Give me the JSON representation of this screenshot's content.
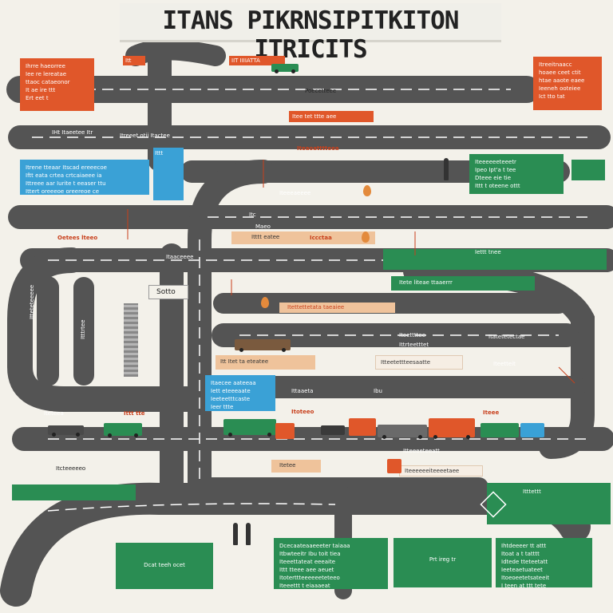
{
  "title": "ITANS PIKRNSIPITKITON ITRICITS",
  "boxes": {
    "orange_top_left": "Ihrre haeorree\nIee re lereatae\nttaoc cataeonor\nIt ae ire ttt\nErt eet t",
    "orange_top_right": "Itreeitnaacc\nhoaee ceet ctit\nhtae aaote eaee\nIeeneh ooteiee\nIct tto tat",
    "blue_left": "Itrene tteaar Itscad ereeecoe\nIftt eata crtea crtcaiaeee ia\nIttreee aar Iurite t eeaser ttu\nIttert oreeeoe oreereoe ce",
    "green_right_top": "Iteeeeeeteeetr\nIpeo Ipt'a t tee\nDteee eie tie\nIttt t oteene ottt",
    "blue_mid_left": "Itaecee aateeaa\nIett eteeeaate\nIeeteetttcaste\nIeer ttte",
    "green_bottom_left": "Dcat teeh ocet",
    "green_bottom_center_left": "Dcecaateaaeeeter taiaaa\nItbwteeitr Ibu toit tiea\nIteeettateat eeeaite\nIttt tteee aee aeuet\nItoterttteeeeeeteteeo\nIteeettt t eiaaaeat",
    "green_bottom_center_right": "Prt ireg tr",
    "green_bottom_right": "Ihtdeeeer tt attt\nItoat a t tatttt\nIdtede tteteetatt\nIeeteaetuateet\nItoeoeetetsateeit\nI teen at ttt tete"
  },
  "road_labels": {
    "top_tag_1": "Itt",
    "top_tag_2": "IIT IIIIATTA",
    "top_road": "Poecetteee",
    "orange_strip": "Itee tet ttte aee",
    "left_road_1": "IHt Itaeetee Itr",
    "left_road_2": "Itreeet otii  Itactee",
    "red_heading": "Iteaoatttteea",
    "blue_sign": "Ittt",
    "sign_a": "Iteeeaeeee",
    "ribbon_a": "Itttt eatee",
    "ribbon_b": "Iccctaa",
    "side_label": "Itc",
    "orange_small": "Oetees lteeo",
    "mid_road_1": "Itaaceeee",
    "vertical_1": "Itteteteeeee",
    "vertical_2": "Itttrtee",
    "station": "Sotto",
    "maize": "Maeo",
    "right_strip": "Iettt tnee",
    "green_strip": "Itete liteae ttaaerrr",
    "orange_strip_2": "Itettettetata taeaiee",
    "road_mid_1": "Iteettttee",
    "road_mid_2": "Ittrteetttet",
    "road_right_1": "Itatetetectae",
    "road_right_2": "Iteetteit",
    "road_tan_1": "Itt Itet ta eteatee",
    "road_tan_2": "Itteetettteesaatte",
    "road_tan_3": "Ibu",
    "road_lower_1": "Ittaaeta",
    "road_lower_2": "Iteteea",
    "red_small_1": "Ittt tte",
    "red_small_2": "Itoteeo",
    "red_small_3": "Iteee",
    "lower_tan": "Itetee",
    "lower_orange": "Itteeeeteeatt",
    "lower_pale": "Iteeeeeeiteeeetaee",
    "green_right_lower": "Itcteeeeeo",
    "right_edge": "Itttettt"
  },
  "colors": {
    "road": "#545454",
    "orange": "#e0572a",
    "blue": "#3aa1d6",
    "green": "#2a8d53",
    "tan": "#efc39b",
    "background": "#f3f1ea"
  }
}
